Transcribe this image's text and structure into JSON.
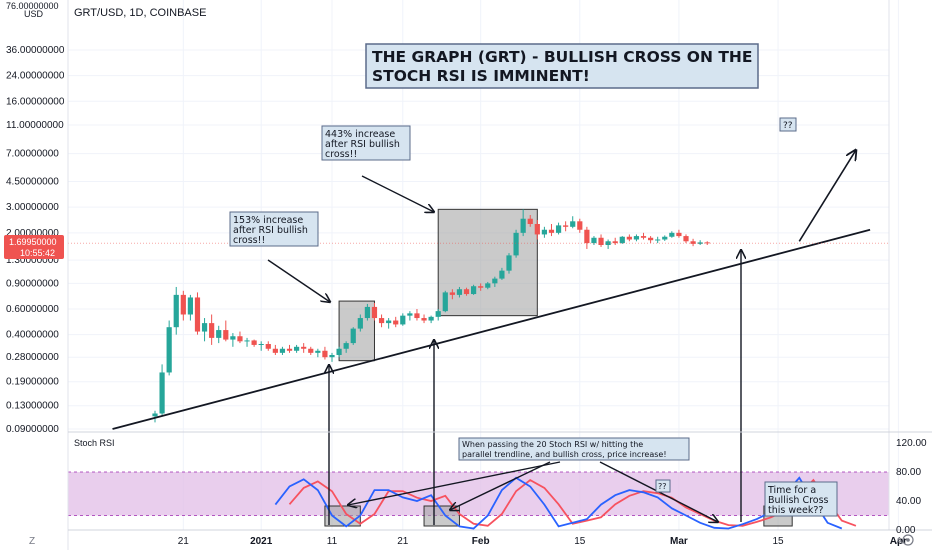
{
  "header": {
    "symbol": "GRT/USD, 1D, COINBASE",
    "currency": "USD",
    "top_tick_cut": "76.00000000"
  },
  "price_tag": {
    "value": "1.69950000",
    "countdown": "10:55:42"
  },
  "footer": {
    "left_icon": "Z",
    "right_icon": "A",
    "corner_icon": "settings-icon"
  },
  "colors": {
    "up": "#26a69a",
    "down": "#ef5350",
    "stoch_k": "#2962ff",
    "stoch_d": "#f7525f",
    "band_fill": "#e1bee7",
    "band_line": "#9c27b0",
    "annotation_box": "#d6e4f0",
    "price_tag_bg": "#ef5350",
    "highlight_box": "#9e9e9e"
  },
  "annotations": {
    "title_lines": [
      "THE GRAPH (GRT) - BULLISH CROSS ON THE",
      "STOCH RSI IS IMMINENT!"
    ],
    "note_153": [
      "153% increase",
      "after RSI bullish",
      "cross!!"
    ],
    "note_443": [
      "443% increase",
      "after RSI bullish",
      "cross!!"
    ],
    "qq_top": "??",
    "qq_mid": "??",
    "note_stoch": [
      "When passing the 20 Stoch RSI w/ hitting the",
      "parallel trendline, and bullish cross, price increase!"
    ],
    "note_time": [
      "Time for a",
      "Bullish Cross",
      "this week??"
    ]
  },
  "chart_data": [
    {
      "type": "candlestick",
      "title": "GRT/USD, 1D, COINBASE",
      "y_scale": "log",
      "price_axis_ticks": [
        36,
        24,
        16,
        11,
        7,
        4.5,
        3,
        2,
        1.3,
        0.9,
        0.6,
        0.4,
        0.28,
        0.19,
        0.13,
        0.09
      ],
      "price_axis_labels": [
        "36.00000000",
        "24.00000000",
        "16.00000000",
        "11.00000000",
        "7.00000000",
        "4.50000000",
        "3.00000000",
        "2.00000000",
        "1.30000000",
        "0.90000000",
        "0.60000000",
        "0.40000000",
        "0.28000000",
        "0.19000000",
        "0.13000000",
        "0.09000000"
      ],
      "time_axis_labels": [
        "21",
        "2021",
        "11",
        "21",
        "Feb",
        "15",
        "Mar",
        "15",
        "Apr"
      ],
      "time_axis_dates": [
        "2020-12-21",
        "2021-01-01",
        "2021-01-11",
        "2021-01-21",
        "2021-02-01",
        "2021-02-15",
        "2021-03-01",
        "2021-03-15",
        "2021-04-01"
      ],
      "start_date": "2020-12-17",
      "last_price": 1.6995,
      "ohlc": [
        [
          0.11,
          0.12,
          0.1,
          0.115
        ],
        [
          0.115,
          0.25,
          0.11,
          0.22
        ],
        [
          0.22,
          0.5,
          0.21,
          0.45
        ],
        [
          0.45,
          0.85,
          0.4,
          0.75
        ],
        [
          0.75,
          0.8,
          0.5,
          0.55
        ],
        [
          0.55,
          0.75,
          0.5,
          0.72
        ],
        [
          0.72,
          0.78,
          0.4,
          0.42
        ],
        [
          0.42,
          0.52,
          0.36,
          0.48
        ],
        [
          0.48,
          0.55,
          0.34,
          0.38
        ],
        [
          0.38,
          0.46,
          0.35,
          0.43
        ],
        [
          0.43,
          0.5,
          0.36,
          0.37
        ],
        [
          0.37,
          0.41,
          0.33,
          0.39
        ],
        [
          0.39,
          0.42,
          0.35,
          0.36
        ],
        [
          0.36,
          0.38,
          0.33,
          0.365
        ],
        [
          0.365,
          0.37,
          0.33,
          0.34
        ],
        [
          0.34,
          0.36,
          0.31,
          0.345
        ],
        [
          0.345,
          0.36,
          0.31,
          0.32
        ],
        [
          0.32,
          0.34,
          0.29,
          0.3
        ],
        [
          0.3,
          0.33,
          0.29,
          0.32
        ],
        [
          0.32,
          0.34,
          0.3,
          0.31
        ],
        [
          0.31,
          0.34,
          0.3,
          0.33
        ],
        [
          0.33,
          0.35,
          0.3,
          0.32
        ],
        [
          0.32,
          0.33,
          0.29,
          0.3
        ],
        [
          0.3,
          0.32,
          0.28,
          0.31
        ],
        [
          0.31,
          0.33,
          0.27,
          0.28
        ],
        [
          0.28,
          0.3,
          0.26,
          0.29
        ],
        [
          0.29,
          0.33,
          0.28,
          0.32
        ],
        [
          0.32,
          0.36,
          0.3,
          0.35
        ],
        [
          0.35,
          0.45,
          0.34,
          0.44
        ],
        [
          0.44,
          0.55,
          0.42,
          0.52
        ],
        [
          0.52,
          0.65,
          0.5,
          0.62
        ],
        [
          0.62,
          0.66,
          0.5,
          0.52
        ],
        [
          0.52,
          0.55,
          0.45,
          0.48
        ],
        [
          0.48,
          0.52,
          0.44,
          0.5
        ],
        [
          0.5,
          0.53,
          0.45,
          0.47
        ],
        [
          0.47,
          0.56,
          0.46,
          0.54
        ],
        [
          0.54,
          0.58,
          0.5,
          0.56
        ],
        [
          0.56,
          0.6,
          0.5,
          0.52
        ],
        [
          0.52,
          0.55,
          0.48,
          0.5
        ],
        [
          0.5,
          0.54,
          0.48,
          0.53
        ],
        [
          0.53,
          0.6,
          0.5,
          0.58
        ],
        [
          0.58,
          0.8,
          0.57,
          0.78
        ],
        [
          0.78,
          0.82,
          0.7,
          0.75
        ],
        [
          0.75,
          0.85,
          0.72,
          0.82
        ],
        [
          0.82,
          0.84,
          0.74,
          0.76
        ],
        [
          0.76,
          0.88,
          0.75,
          0.86
        ],
        [
          0.86,
          0.9,
          0.8,
          0.84
        ],
        [
          0.84,
          0.92,
          0.82,
          0.9
        ],
        [
          0.9,
          1.0,
          0.85,
          0.97
        ],
        [
          0.97,
          1.15,
          0.95,
          1.1
        ],
        [
          1.1,
          1.45,
          1.05,
          1.4
        ],
        [
          1.4,
          2.1,
          1.35,
          2.0
        ],
        [
          2.0,
          2.9,
          1.9,
          2.5
        ],
        [
          2.5,
          2.65,
          2.2,
          2.3
        ],
        [
          2.3,
          2.45,
          1.8,
          1.95
        ],
        [
          1.95,
          2.2,
          1.85,
          2.1
        ],
        [
          2.1,
          2.3,
          1.9,
          2.0
        ],
        [
          2.0,
          2.35,
          1.95,
          2.25
        ],
        [
          2.25,
          2.4,
          2.05,
          2.2
        ],
        [
          2.2,
          2.6,
          2.15,
          2.4
        ],
        [
          2.4,
          2.5,
          2.0,
          2.1
        ],
        [
          2.1,
          2.2,
          1.55,
          1.7
        ],
        [
          1.7,
          1.9,
          1.65,
          1.85
        ],
        [
          1.85,
          1.95,
          1.6,
          1.65
        ],
        [
          1.65,
          1.8,
          1.55,
          1.75
        ],
        [
          1.75,
          1.85,
          1.65,
          1.7
        ],
        [
          1.7,
          1.9,
          1.68,
          1.88
        ],
        [
          1.88,
          1.95,
          1.75,
          1.8
        ],
        [
          1.8,
          1.95,
          1.75,
          1.9
        ],
        [
          1.9,
          2.0,
          1.8,
          1.85
        ],
        [
          1.85,
          1.9,
          1.7,
          1.78
        ],
        [
          1.78,
          1.88,
          1.7,
          1.8
        ],
        [
          1.8,
          1.92,
          1.76,
          1.88
        ],
        [
          1.88,
          2.05,
          1.85,
          2.0
        ],
        [
          2.0,
          2.1,
          1.85,
          1.9
        ],
        [
          1.9,
          1.95,
          1.7,
          1.75
        ],
        [
          1.75,
          1.82,
          1.62,
          1.68
        ],
        [
          1.68,
          1.78,
          1.65,
          1.72
        ],
        [
          1.72,
          1.75,
          1.65,
          1.7
        ]
      ],
      "trendline": {
        "from": [
          "2020-12-11",
          0.09
        ],
        "to": [
          "2021-03-28",
          2.1
        ]
      },
      "arrow_projection": {
        "from": [
          "2021-03-18",
          1.75
        ],
        "to": [
          "2021-03-26",
          7.4
        ]
      },
      "highlight_boxes": [
        {
          "from": "2021-01-12",
          "to": "2021-01-17",
          "low": 0.265,
          "high": 0.68
        },
        {
          "from": "2021-01-26",
          "to": "2021-02-09",
          "low": 0.54,
          "high": 2.9
        }
      ]
    },
    {
      "type": "line",
      "title": "Stoch RSI",
      "ylim": [
        0,
        120
      ],
      "y_ticks": [
        0,
        40,
        80,
        120
      ],
      "y_tick_labels": [
        "0.00",
        "40.00",
        "80.00",
        "120.00"
      ],
      "band": [
        20,
        80
      ],
      "x_start": "2020-12-17",
      "series": [
        {
          "color": "#2962ff",
          "values": [
            null,
            null,
            null,
            null,
            null,
            null,
            null,
            null,
            null,
            null,
            null,
            null,
            null,
            null,
            null,
            null,
            null,
            null,
            null,
            null,
            null,
            null,
            null,
            null,
            null,
            null,
            null,
            null,
            null,
            null,
            null,
            null,
            null,
            null,
            null,
            null,
            null,
            null,
            null,
            null,
            null,
            null,
            null,
            null,
            null,
            null,
            null,
            null,
            null,
            null,
            null,
            null,
            null,
            null,
            null,
            null,
            null,
            null,
            null,
            null,
            null,
            null,
            null,
            null,
            null,
            null,
            null,
            null,
            null,
            null,
            null,
            null,
            null,
            null,
            null,
            null,
            null,
            null,
            null,
            null,
            null,
            null,
            null,
            null
          ]
        },
        {
          "color": "#f7525f",
          "values": []
        }
      ]
    }
  ]
}
